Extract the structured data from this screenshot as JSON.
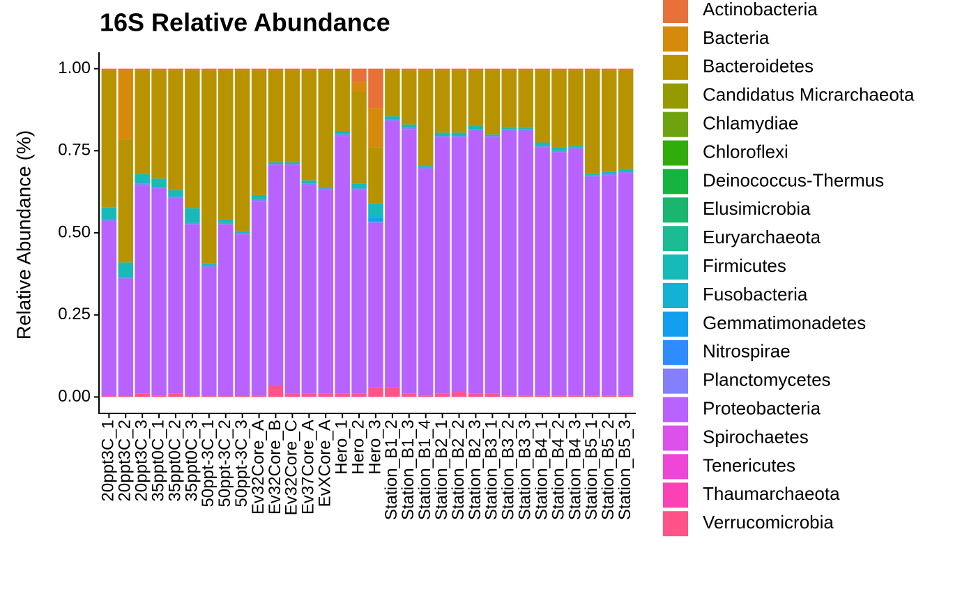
{
  "chart_data": {
    "type": "stacked_bar",
    "title": "16S Relative Abundance",
    "y_label": "Relative Abundance (%)",
    "categories": [
      "20ppt3C_1",
      "20ppt3C_2",
      "20ppt3C_3",
      "35ppt0C_1",
      "35ppt0C_2",
      "35ppt0C_3",
      "50ppt-3C_1",
      "50ppt-3C_2",
      "50ppt-3C_3",
      "Ev32Core_A",
      "Ev32Core_B",
      "Ev32Core_C",
      "Ev37Core_A",
      "EvXCore_A",
      "Hero_1",
      "Hero_2",
      "Hero_3",
      "Station_B1_2",
      "Station_B1_3",
      "Station_B1_4",
      "Station_B2_1",
      "Station_B2_2",
      "Station_B2_3",
      "Station_B3_1",
      "Station_B3_2",
      "Station_B3_3",
      "Station_B4_1",
      "Station_B4_2",
      "Station_B4_3",
      "Station_B5_1",
      "Station_B5_2",
      "Station_B5_3"
    ],
    "ylim": [
      -0.05,
      1.05
    ],
    "yticks": [
      {
        "value": 0,
        "label": "0.00"
      },
      {
        "value": 0.25,
        "label": "0.25"
      },
      {
        "value": 0.5,
        "label": "0.50"
      },
      {
        "value": 0.75,
        "label": "0.75"
      },
      {
        "value": 1,
        "label": "1.00"
      }
    ],
    "series": [
      {
        "name": "Actinobacteria",
        "color": "#E8713A",
        "values": [
          0.005,
          0.005,
          0.005,
          0.005,
          0.005,
          0.005,
          0.005,
          0.005,
          0.005,
          0.005,
          0.005,
          0.005,
          0.005,
          0.005,
          0.005,
          0.04,
          0.12,
          0.005,
          0.005,
          0.005,
          0.005,
          0.005,
          0.005,
          0.005,
          0.005,
          0.005,
          0.005,
          0.005,
          0.005,
          0.005,
          0.005,
          0.005
        ]
      },
      {
        "name": "Bacteria",
        "color": "#D58A0C",
        "values": [
          0,
          0.21,
          0,
          0,
          0,
          0,
          0,
          0,
          0,
          0,
          0,
          0,
          0,
          0,
          0,
          0.03,
          0.12,
          0,
          0,
          0,
          0,
          0,
          0,
          0,
          0,
          0,
          0,
          0,
          0,
          0,
          0,
          0
        ]
      },
      {
        "name": "Bacteroidetes",
        "color": "#B89300",
        "values": [
          0.417,
          0.375,
          0.315,
          0.33,
          0.365,
          0.42,
          0.59,
          0.455,
          0.49,
          0.38,
          0.28,
          0.28,
          0.335,
          0.355,
          0.185,
          0.28,
          0.17,
          0.14,
          0.165,
          0.29,
          0.19,
          0.19,
          0.17,
          0.195,
          0.175,
          0.175,
          0.22,
          0.235,
          0.23,
          0.315,
          0.31,
          0.3
        ]
      },
      {
        "name": "Candidatus Micrarchaeota",
        "color": "#959A00",
        "values": [
          0,
          0,
          0,
          0,
          0,
          0,
          0,
          0,
          0,
          0,
          0,
          0,
          0,
          0,
          0,
          0,
          0,
          0,
          0,
          0,
          0,
          0,
          0,
          0,
          0,
          0,
          0,
          0,
          0,
          0,
          0,
          0
        ]
      },
      {
        "name": "Chlamydiae",
        "color": "#6FA20F",
        "values": [
          0,
          0,
          0,
          0,
          0,
          0,
          0,
          0,
          0,
          0,
          0,
          0,
          0,
          0,
          0,
          0,
          0,
          0,
          0,
          0,
          0,
          0,
          0,
          0,
          0,
          0,
          0,
          0,
          0,
          0,
          0,
          0
        ]
      },
      {
        "name": "Chloroflexi",
        "color": "#31AD0B",
        "values": [
          0,
          0,
          0,
          0,
          0,
          0,
          0,
          0,
          0,
          0,
          0,
          0,
          0,
          0,
          0,
          0,
          0,
          0,
          0,
          0,
          0,
          0,
          0,
          0,
          0,
          0,
          0,
          0,
          0,
          0,
          0,
          0
        ]
      },
      {
        "name": "Deinococcus-Thermus",
        "color": "#16B33F",
        "values": [
          0,
          0,
          0,
          0,
          0,
          0,
          0,
          0,
          0,
          0,
          0,
          0,
          0,
          0,
          0,
          0,
          0,
          0,
          0,
          0,
          0,
          0,
          0,
          0,
          0,
          0,
          0,
          0,
          0,
          0,
          0,
          0
        ]
      },
      {
        "name": "Elusimicrobia",
        "color": "#1AB670",
        "values": [
          0,
          0,
          0,
          0,
          0,
          0,
          0,
          0,
          0,
          0,
          0,
          0,
          0,
          0,
          0,
          0,
          0,
          0,
          0,
          0,
          0,
          0,
          0,
          0,
          0,
          0,
          0,
          0,
          0,
          0,
          0,
          0
        ]
      },
      {
        "name": "Euryarchaeota",
        "color": "#1BBB93",
        "values": [
          0,
          0,
          0,
          0,
          0,
          0,
          0,
          0,
          0,
          0,
          0,
          0,
          0,
          0,
          0,
          0,
          0,
          0,
          0,
          0,
          0,
          0,
          0,
          0,
          0,
          0,
          0,
          0,
          0,
          0,
          0,
          0
        ]
      },
      {
        "name": "Firmicutes",
        "color": "#17BAB8",
        "values": [
          0.038,
          0.045,
          0.03,
          0.025,
          0.02,
          0.045,
          0.005,
          0.01,
          0.005,
          0.015,
          0.005,
          0.005,
          0.01,
          0.005,
          0.01,
          0.015,
          0.035,
          0.01,
          0.01,
          0.005,
          0.01,
          0.01,
          0.01,
          0.005,
          0.005,
          0.005,
          0.01,
          0.01,
          0.005,
          0.005,
          0.005,
          0.01
        ]
      },
      {
        "name": "Fusobacteria",
        "color": "#13B1D6",
        "values": [
          0,
          0,
          0,
          0,
          0,
          0,
          0,
          0,
          0,
          0,
          0,
          0,
          0,
          0,
          0,
          0,
          0.01,
          0,
          0,
          0,
          0,
          0,
          0,
          0,
          0,
          0,
          0,
          0,
          0,
          0,
          0,
          0
        ]
      },
      {
        "name": "Gemmatimonadetes",
        "color": "#139FEF",
        "values": [
          0,
          0,
          0,
          0,
          0,
          0,
          0,
          0,
          0,
          0,
          0,
          0,
          0,
          0,
          0,
          0,
          0.01,
          0,
          0,
          0,
          0,
          0,
          0,
          0,
          0,
          0,
          0,
          0,
          0,
          0,
          0,
          0
        ]
      },
      {
        "name": "Nitrospirae",
        "color": "#2E8CFF",
        "values": [
          0,
          0,
          0,
          0,
          0,
          0,
          0,
          0,
          0,
          0,
          0,
          0,
          0,
          0,
          0,
          0,
          0,
          0,
          0,
          0,
          0,
          0,
          0,
          0,
          0,
          0,
          0,
          0,
          0,
          0,
          0,
          0
        ]
      },
      {
        "name": "Planctomycetes",
        "color": "#8480FD",
        "values": [
          0.005,
          0.005,
          0.005,
          0.005,
          0.005,
          0.005,
          0.005,
          0.005,
          0.005,
          0.005,
          0.005,
          0.005,
          0.005,
          0.005,
          0.005,
          0.005,
          0.005,
          0.005,
          0.005,
          0.005,
          0.005,
          0.005,
          0.005,
          0.005,
          0.005,
          0.005,
          0.005,
          0.005,
          0.005,
          0.005,
          0.005,
          0.005
        ]
      },
      {
        "name": "Proteobacteria",
        "color": "#B862FF",
        "values": [
          0.532,
          0.357,
          0.635,
          0.63,
          0.595,
          0.522,
          0.392,
          0.522,
          0.492,
          0.59,
          0.67,
          0.695,
          0.635,
          0.62,
          0.785,
          0.62,
          0.5,
          0.81,
          0.805,
          0.69,
          0.78,
          0.775,
          0.8,
          0.78,
          0.805,
          0.805,
          0.755,
          0.74,
          0.75,
          0.665,
          0.67,
          0.675
        ]
      },
      {
        "name": "Spirochaetes",
        "color": "#DB51EA",
        "values": [
          0,
          0,
          0,
          0,
          0,
          0,
          0,
          0,
          0,
          0,
          0,
          0,
          0,
          0,
          0,
          0,
          0,
          0,
          0,
          0,
          0,
          0,
          0,
          0,
          0,
          0,
          0,
          0,
          0,
          0,
          0,
          0
        ]
      },
      {
        "name": "Tenericutes",
        "color": "#EE46D6",
        "values": [
          0,
          0,
          0,
          0,
          0,
          0,
          0,
          0,
          0,
          0,
          0,
          0,
          0,
          0,
          0,
          0,
          0,
          0,
          0,
          0,
          0,
          0,
          0,
          0,
          0,
          0,
          0,
          0,
          0,
          0,
          0,
          0
        ]
      },
      {
        "name": "Thaumarchaeota",
        "color": "#FA42B4",
        "values": [
          0,
          0,
          0,
          0,
          0,
          0,
          0,
          0,
          0,
          0,
          0,
          0,
          0,
          0,
          0,
          0,
          0,
          0,
          0,
          0,
          0,
          0,
          0,
          0,
          0,
          0,
          0,
          0,
          0,
          0,
          0,
          0
        ]
      },
      {
        "name": "Verrucomicrobia",
        "color": "#FF5389",
        "values": [
          0.003,
          0.003,
          0.01,
          0.005,
          0.01,
          0.003,
          0.003,
          0.003,
          0.003,
          0.005,
          0.035,
          0.01,
          0.01,
          0.01,
          0.01,
          0.01,
          0.03,
          0.03,
          0.01,
          0.005,
          0.01,
          0.015,
          0.01,
          0.01,
          0.005,
          0.005,
          0.005,
          0.005,
          0.005,
          0.005,
          0.005,
          0.005
        ]
      }
    ]
  }
}
